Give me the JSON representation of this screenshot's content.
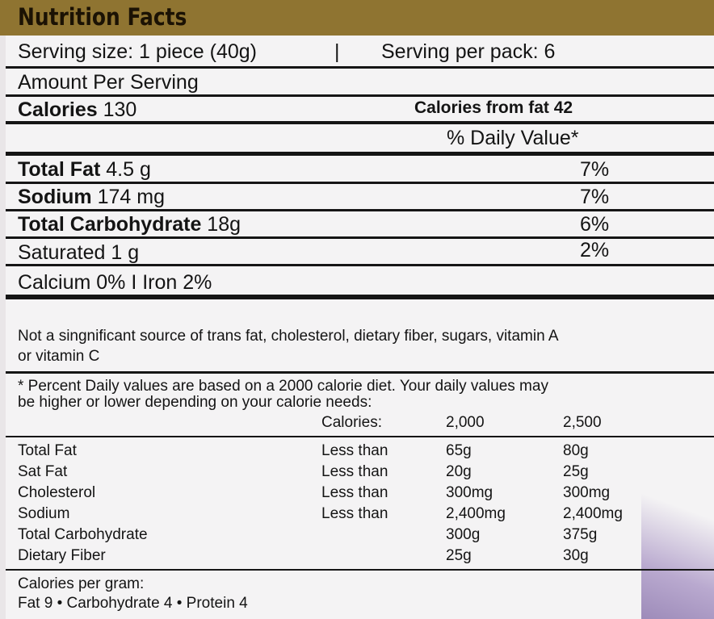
{
  "title": "Nutrition Facts",
  "serving": {
    "size": "Serving size: 1 piece (40g)",
    "separator": "|",
    "per_pack": "Serving per pack: 6"
  },
  "amount_per_serving": "Amount Per Serving",
  "calories": {
    "label": "Calories",
    "value": "130",
    "from_fat": "Calories from fat 42"
  },
  "daily_value_header": "% Daily Value*",
  "nutrients": [
    {
      "label": "Total Fat",
      "amount": "4.5 g",
      "dv": "7%",
      "bold": true
    },
    {
      "label": "Sodium",
      "amount": "174 mg",
      "dv": "7%",
      "bold": true
    },
    {
      "label": "Total Carbohydrate",
      "amount": "18g",
      "dv": "6%",
      "bold": true
    },
    {
      "label": "Saturated",
      "amount": "1 g",
      "dv": "2%",
      "bold": false
    }
  ],
  "minerals": "Calcium 0% I Iron 2%",
  "not_significant": [
    "Not a singnificant source of trans fat, cholesterol, dietary fiber, sugars, vitamin A",
    "or vitamin C"
  ],
  "footnote": [
    "* Percent Daily values are based on a 2000 calorie diet. Your daily values may",
    "be higher or lower depending on your calorie needs:"
  ],
  "reference": {
    "header": {
      "calories_label": "Calories:",
      "col1": "2,000",
      "col2": "2,500"
    },
    "rows": [
      {
        "label": "Total Fat",
        "qualifier": "Less than",
        "v1": "65g",
        "v2": "80g"
      },
      {
        "label": "Sat Fat",
        "qualifier": "Less than",
        "v1": "20g",
        "v2": "25g"
      },
      {
        "label": "Cholesterol",
        "qualifier": "Less than",
        "v1": "300mg",
        "v2": "300mg"
      },
      {
        "label": "Sodium",
        "qualifier": "Less than",
        "v1": "2,400mg",
        "v2": "2,400mg"
      },
      {
        "label": "Total Carbohydrate",
        "qualifier": "",
        "v1": "300g",
        "v2": "375g"
      },
      {
        "label": "Dietary Fiber",
        "qualifier": "",
        "v1": "25g",
        "v2": "30g"
      }
    ]
  },
  "calories_per_gram": {
    "label": "Calories per gram:",
    "values": "Fat 9 • Carbohydrate 4 • Protein 4"
  }
}
